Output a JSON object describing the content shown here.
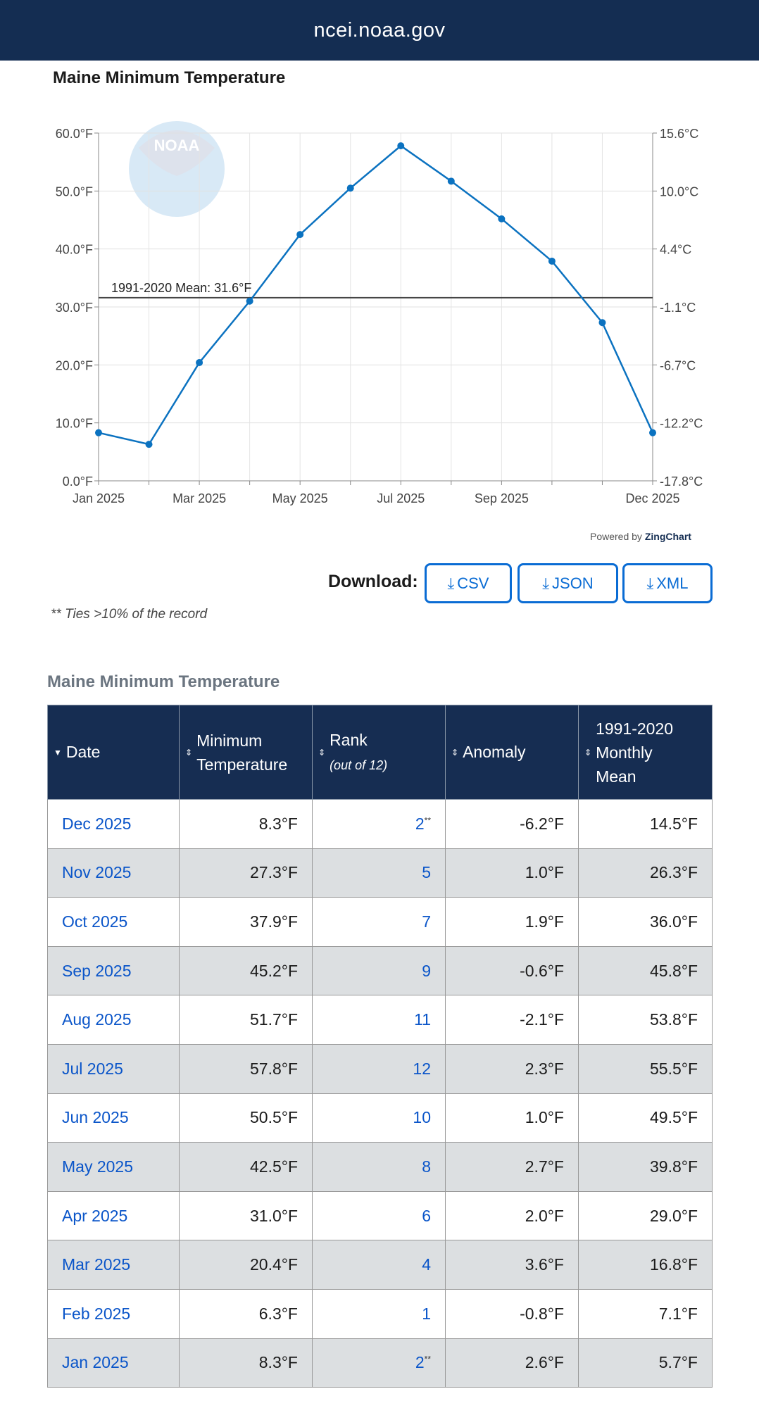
{
  "site": "ncei.noaa.gov",
  "chart_title": "Maine Minimum Temperature",
  "powered_by": "Powered by",
  "powered_brand": "ZingChart",
  "download": {
    "label": "Download:",
    "buttons": [
      "CSV",
      "JSON",
      "XML"
    ]
  },
  "note": "** Ties >10% of the record",
  "table_title": "Maine Minimum Temperature",
  "columns": {
    "date": "Date",
    "min1": "Minimum",
    "min2": "Temperature",
    "rank": "Rank",
    "rank_sub": "(out of 12)",
    "anomaly": "Anomaly",
    "mean1": "1991-2020",
    "mean2": "Monthly",
    "mean3": "Mean"
  },
  "rows": [
    [
      "Dec 2025",
      "8.3°F",
      "2",
      "**",
      "-6.2°F",
      "14.5°F"
    ],
    [
      "Nov 2025",
      "27.3°F",
      "5",
      "",
      "1.0°F",
      "26.3°F"
    ],
    [
      "Oct 2025",
      "37.9°F",
      "7",
      "",
      "1.9°F",
      "36.0°F"
    ],
    [
      "Sep 2025",
      "45.2°F",
      "9",
      "",
      "-0.6°F",
      "45.8°F"
    ],
    [
      "Aug 2025",
      "51.7°F",
      "11",
      "",
      "-2.1°F",
      "53.8°F"
    ],
    [
      "Jul 2025",
      "57.8°F",
      "12",
      "",
      "2.3°F",
      "55.5°F"
    ],
    [
      "Jun 2025",
      "50.5°F",
      "10",
      "",
      "1.0°F",
      "49.5°F"
    ],
    [
      "May 2025",
      "42.5°F",
      "8",
      "",
      "2.7°F",
      "39.8°F"
    ],
    [
      "Apr 2025",
      "31.0°F",
      "6",
      "",
      "2.0°F",
      "29.0°F"
    ],
    [
      "Mar 2025",
      "20.4°F",
      "4",
      "",
      "3.6°F",
      "16.8°F"
    ],
    [
      "Feb 2025",
      "6.3°F",
      "1",
      "",
      "-0.8°F",
      "7.1°F"
    ],
    [
      "Jan 2025",
      "8.3°F",
      "2",
      "**",
      "2.6°F",
      "5.7°F"
    ]
  ],
  "chart_data": {
    "type": "line",
    "title": "Maine Minimum Temperature",
    "x": [
      "Jan 2025",
      "Feb 2025",
      "Mar 2025",
      "Apr 2025",
      "May 2025",
      "Jun 2025",
      "Jul 2025",
      "Aug 2025",
      "Sep 2025",
      "Oct 2025",
      "Nov 2025",
      "Dec 2025"
    ],
    "x_tick_labels": [
      "Jan 2025",
      "Mar 2025",
      "May 2025",
      "Jul 2025",
      "Sep 2025",
      "Dec 2025"
    ],
    "values": [
      8.3,
      6.3,
      20.4,
      31.0,
      42.5,
      50.5,
      57.8,
      51.7,
      45.2,
      37.9,
      27.3,
      8.3
    ],
    "ylim": [
      0,
      60
    ],
    "y_ticks": [
      0,
      10,
      20,
      30,
      40,
      50,
      60
    ],
    "y_tick_labels": [
      "0.0°F",
      "10.0°F",
      "20.0°F",
      "30.0°F",
      "40.0°F",
      "50.0°F",
      "60.0°F"
    ],
    "y2_tick_labels": [
      "-17.8°C",
      "-12.2°C",
      "-6.7°C",
      "-1.1°C",
      "4.4°C",
      "10.0°C",
      "15.6°C"
    ],
    "mean_line": 31.6,
    "mean_label": "1991-2020 Mean: 31.6°F",
    "line_color": "#0b72c0",
    "grid": true
  }
}
